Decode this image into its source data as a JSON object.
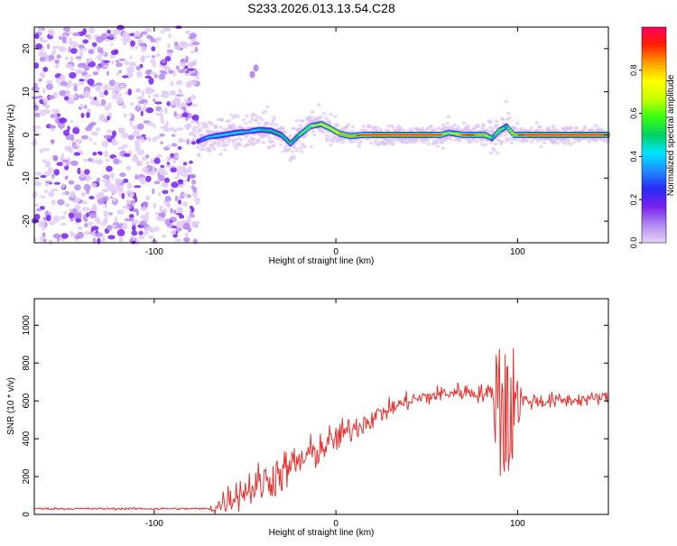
{
  "title": "S233.2026.013.13.54.C28",
  "chart_data": [
    {
      "type": "heatmap",
      "title": "S233.2026.013.13.54.C28",
      "xlabel": "Height of straight line (km)",
      "ylabel": "Frequency (Hz)",
      "xlim": [
        -166,
        150
      ],
      "ylim": [
        -25,
        25
      ],
      "xticks": [
        -100,
        0,
        100
      ],
      "yticks": [
        -20,
        -10,
        0,
        10,
        20
      ],
      "colorbar": {
        "label": "Normalized spectral amplitude",
        "range": [
          0,
          1
        ],
        "ticks": [
          "0.0",
          "0.2",
          "0.4",
          "0.6",
          "0.8"
        ],
        "colors": [
          "#e8d4f8",
          "#b088f0",
          "#7a22f0",
          "#2a2af5",
          "#1f8cff",
          "#00e5ff",
          "#00d060",
          "#39ff14",
          "#c8ff00",
          "#ffff00",
          "#ffa000",
          "#ff2000",
          "#ff0060"
        ]
      },
      "noise_region": {
        "x_range": [
          -166,
          -76
        ],
        "amplitude_range": [
          0.0,
          0.12
        ]
      },
      "signal_track": [
        {
          "x": -76,
          "f": -1.5,
          "a": 0.25
        },
        {
          "x": -70,
          "f": -0.5,
          "a": 0.4
        },
        {
          "x": -62,
          "f": 0.0,
          "a": 0.45
        },
        {
          "x": -55,
          "f": 0.5,
          "a": 0.45
        },
        {
          "x": -48,
          "f": 0.8,
          "a": 0.4
        },
        {
          "x": -42,
          "f": 1.2,
          "a": 0.45
        },
        {
          "x": -36,
          "f": 1.0,
          "a": 0.5
        },
        {
          "x": -30,
          "f": 0.0,
          "a": 0.5
        },
        {
          "x": -25,
          "f": -2.0,
          "a": 0.45
        },
        {
          "x": -20,
          "f": 0.0,
          "a": 0.55
        },
        {
          "x": -14,
          "f": 2.0,
          "a": 0.6
        },
        {
          "x": -8,
          "f": 2.5,
          "a": 0.75
        },
        {
          "x": -3,
          "f": 1.5,
          "a": 0.75
        },
        {
          "x": 2,
          "f": 0.3,
          "a": 0.8
        },
        {
          "x": 8,
          "f": -0.3,
          "a": 0.85
        },
        {
          "x": 15,
          "f": 0.0,
          "a": 0.9
        },
        {
          "x": 30,
          "f": 0.0,
          "a": 0.95
        },
        {
          "x": 45,
          "f": 0.0,
          "a": 0.95
        },
        {
          "x": 58,
          "f": 0.0,
          "a": 0.9
        },
        {
          "x": 62,
          "f": 0.5,
          "a": 0.6
        },
        {
          "x": 70,
          "f": 0.0,
          "a": 0.9
        },
        {
          "x": 82,
          "f": 0.0,
          "a": 0.85
        },
        {
          "x": 86,
          "f": -0.8,
          "a": 0.5
        },
        {
          "x": 90,
          "f": 1.0,
          "a": 0.6
        },
        {
          "x": 94,
          "f": 2.0,
          "a": 0.5
        },
        {
          "x": 98,
          "f": 0.0,
          "a": 0.85
        },
        {
          "x": 110,
          "f": 0.0,
          "a": 0.95
        },
        {
          "x": 125,
          "f": 0.0,
          "a": 0.95
        },
        {
          "x": 140,
          "f": 0.0,
          "a": 0.95
        },
        {
          "x": 150,
          "f": 0.0,
          "a": 0.95
        }
      ],
      "stray_blobs": [
        {
          "x": -44,
          "f": 15.5
        },
        {
          "x": -46,
          "f": 14.0
        }
      ]
    },
    {
      "type": "line",
      "xlabel": "Height of straight line (km)",
      "ylabel": "SNR (10 * v/v)",
      "xlim": [
        -166,
        150
      ],
      "ylim": [
        0,
        1140
      ],
      "xticks": [
        -100,
        0,
        100
      ],
      "yticks": [
        0,
        200,
        400,
        600,
        800,
        1000
      ],
      "color": "#e8312e",
      "trend": {
        "x": [
          -166,
          -70,
          -65,
          -60,
          -50,
          -40,
          -30,
          -20,
          -10,
          0,
          10,
          20,
          30,
          40,
          50,
          60,
          70,
          80,
          88,
          92,
          95,
          98,
          105,
          120,
          140,
          150
        ],
        "y": [
          30,
          30,
          40,
          80,
          130,
          170,
          220,
          280,
          340,
          400,
          460,
          510,
          560,
          600,
          620,
          640,
          650,
          640,
          640,
          600,
          550,
          610,
          600,
          600,
          610,
          620
        ]
      },
      "noise": {
        "x": [
          -166,
          -70,
          -65,
          -40,
          -10,
          30,
          85,
          88,
          92,
          95,
          98,
          103,
          150
        ],
        "amplitude": [
          5,
          5,
          60,
          110,
          90,
          45,
          45,
          250,
          520,
          520,
          250,
          45,
          30
        ]
      }
    }
  ]
}
